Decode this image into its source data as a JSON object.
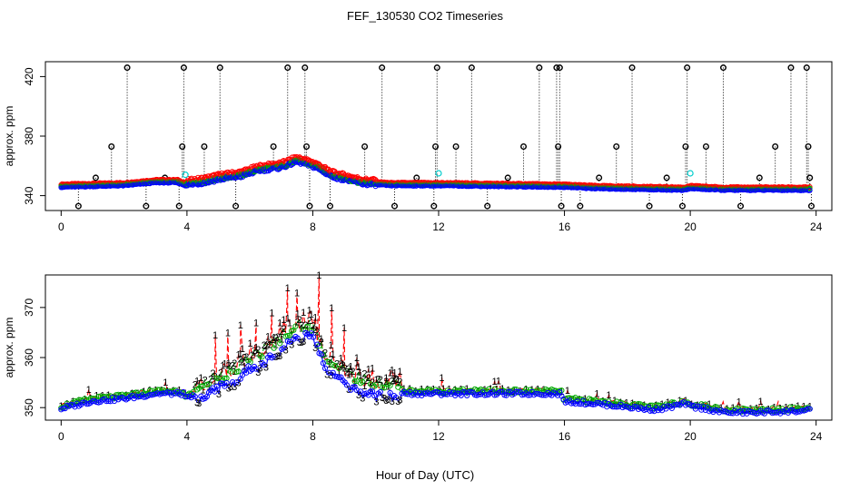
{
  "title": "FEF_130530  CO2 Timeseries",
  "xlabel": "Hour of Day (UTC)",
  "chart_data": [
    {
      "type": "scatter",
      "title": "FEF_130530  CO2 Timeseries",
      "xlabel": "Hour of Day (UTC)",
      "ylabel": "approx. ppm",
      "xlim": [
        -0.5,
        24.5
      ],
      "ylim": [
        330,
        430
      ],
      "xticks": [
        "0",
        "4",
        "8",
        "12",
        "16",
        "20",
        "24"
      ],
      "yticks": [
        "340",
        "380",
        "420"
      ],
      "grid": false,
      "legend": "none",
      "series_colors": {
        "drops": "#000000",
        "s1": "#ff0000",
        "s2": "#00aa00",
        "s3": "#0000ff",
        "flag": "#00cccc"
      },
      "baseline_knots": {
        "x": [
          0.0,
          2.0,
          3.0,
          3.7,
          3.95,
          4.6,
          5.0,
          5.7,
          6.3,
          7.0,
          7.5,
          8.1,
          8.6,
          9.0,
          9.6,
          10.5,
          12.0,
          15.8,
          15.95,
          17.0,
          19.8,
          20.05,
          21.0,
          23.8
        ],
        "y": [
          346,
          347,
          349,
          349,
          347,
          349,
          351,
          353,
          357,
          359,
          363,
          359,
          353,
          351,
          348,
          347,
          347,
          346,
          346,
          345,
          344,
          345,
          344,
          344
        ]
      },
      "drop_points": [
        {
          "x": 0.55,
          "y": 333
        },
        {
          "x": 1.1,
          "y": 352
        },
        {
          "x": 1.6,
          "y": 373
        },
        {
          "x": 2.1,
          "y": 426
        },
        {
          "x": 2.7,
          "y": 333
        },
        {
          "x": 3.3,
          "y": 352
        },
        {
          "x": 3.75,
          "y": 333
        },
        {
          "x": 3.85,
          "y": 373
        },
        {
          "x": 3.9,
          "y": 426
        },
        {
          "x": 4.55,
          "y": 373
        },
        {
          "x": 5.05,
          "y": 426
        },
        {
          "x": 5.55,
          "y": 333
        },
        {
          "x": 6.75,
          "y": 373
        },
        {
          "x": 7.2,
          "y": 426
        },
        {
          "x": 7.75,
          "y": 426
        },
        {
          "x": 7.8,
          "y": 373
        },
        {
          "x": 7.9,
          "y": 333
        },
        {
          "x": 8.55,
          "y": 333
        },
        {
          "x": 9.65,
          "y": 373
        },
        {
          "x": 10.2,
          "y": 426
        },
        {
          "x": 10.6,
          "y": 333
        },
        {
          "x": 11.3,
          "y": 352
        },
        {
          "x": 11.85,
          "y": 333
        },
        {
          "x": 11.9,
          "y": 373
        },
        {
          "x": 11.95,
          "y": 426
        },
        {
          "x": 12.55,
          "y": 373
        },
        {
          "x": 13.05,
          "y": 426
        },
        {
          "x": 13.55,
          "y": 333
        },
        {
          "x": 14.2,
          "y": 352
        },
        {
          "x": 14.7,
          "y": 373
        },
        {
          "x": 15.2,
          "y": 426
        },
        {
          "x": 15.75,
          "y": 426
        },
        {
          "x": 15.8,
          "y": 373
        },
        {
          "x": 15.85,
          "y": 426
        },
        {
          "x": 15.9,
          "y": 333
        },
        {
          "x": 16.5,
          "y": 333
        },
        {
          "x": 17.1,
          "y": 352
        },
        {
          "x": 17.65,
          "y": 373
        },
        {
          "x": 18.15,
          "y": 426
        },
        {
          "x": 18.7,
          "y": 333
        },
        {
          "x": 19.25,
          "y": 352
        },
        {
          "x": 19.75,
          "y": 333
        },
        {
          "x": 19.85,
          "y": 373
        },
        {
          "x": 19.9,
          "y": 426
        },
        {
          "x": 20.5,
          "y": 373
        },
        {
          "x": 21.05,
          "y": 426
        },
        {
          "x": 21.6,
          "y": 333
        },
        {
          "x": 22.2,
          "y": 352
        },
        {
          "x": 22.7,
          "y": 373
        },
        {
          "x": 23.2,
          "y": 426
        },
        {
          "x": 23.7,
          "y": 426
        },
        {
          "x": 23.75,
          "y": 373
        },
        {
          "x": 23.8,
          "y": 352
        },
        {
          "x": 23.85,
          "y": 333
        }
      ],
      "flag_points": [
        {
          "x": 3.95,
          "y": 354
        },
        {
          "x": 12.0,
          "y": 355
        },
        {
          "x": 20.0,
          "y": 355
        }
      ]
    },
    {
      "type": "line",
      "ylabel": "approx. ppm",
      "xlim": [
        -0.5,
        24.5
      ],
      "ylim": [
        347.5,
        376.5
      ],
      "xticks": [
        "0",
        "4",
        "8",
        "12",
        "16",
        "20",
        "24"
      ],
      "yticks": [
        "350",
        "360",
        "370"
      ],
      "grid": false,
      "legend": "none",
      "series_labels": [
        "1",
        "2",
        "3"
      ],
      "series_colors": {
        "s1": "#ff0000",
        "s2": "#00aa00",
        "s3": "#0000ff"
      },
      "baseline_knots": {
        "x": [
          0.0,
          1.0,
          2.0,
          3.0,
          3.9,
          3.95,
          4.5,
          5.0,
          5.5,
          6.0,
          6.5,
          7.0,
          7.5,
          8.0,
          8.4,
          8.8,
          9.2,
          9.6,
          10.0,
          10.5,
          11.0,
          12.0,
          15.9,
          15.95,
          17.0,
          18.5,
          19.0,
          19.85,
          19.95,
          20.5,
          21.0,
          22.0,
          23.8
        ],
        "y": [
          350.0,
          351.5,
          352.0,
          353.0,
          353.0,
          352.0,
          353.0,
          355.0,
          356.0,
          358.5,
          360.0,
          363.0,
          365.0,
          365.0,
          359.0,
          357.0,
          355.0,
          354.0,
          353.5,
          353.5,
          353.0,
          353.0,
          353.0,
          351.5,
          351.0,
          350.0,
          349.8,
          351.0,
          350.5,
          350.0,
          349.3,
          349.2,
          349.6
        ]
      },
      "spike_points": [
        {
          "x": 4.9,
          "y": 364.5
        },
        {
          "x": 5.3,
          "y": 365.0
        },
        {
          "x": 5.7,
          "y": 366.5
        },
        {
          "x": 6.2,
          "y": 367.0
        },
        {
          "x": 6.7,
          "y": 369.0
        },
        {
          "x": 7.2,
          "y": 374.0
        },
        {
          "x": 7.5,
          "y": 373.0
        },
        {
          "x": 8.2,
          "y": 376.5
        },
        {
          "x": 8.6,
          "y": 370.0
        },
        {
          "x": 9.0,
          "y": 366.0
        },
        {
          "x": 9.4,
          "y": 360.0
        },
        {
          "x": 10.6,
          "y": 357.0
        },
        {
          "x": 12.1,
          "y": 356.0
        }
      ]
    }
  ]
}
